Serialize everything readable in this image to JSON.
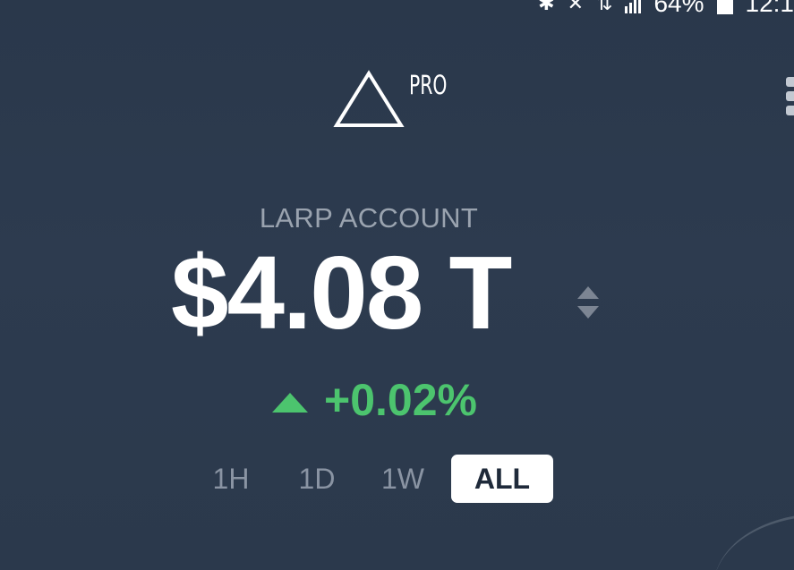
{
  "status_bar": {
    "battery": "64%",
    "time": "12:1"
  },
  "header": {
    "badge": "PRO"
  },
  "account": {
    "label": "LARP ACCOUNT",
    "balance": "$4.08 T"
  },
  "change": {
    "value": "+0.02%",
    "direction": "up",
    "color": "#4cc46e"
  },
  "ranges": [
    "1H",
    "1D",
    "1W",
    "ALL"
  ],
  "selected_range": "ALL",
  "icons": {
    "logo": "triangle-logo-icon",
    "toggle": "sort-toggle-icon",
    "change": "caret-up-icon",
    "menu": "more-vertical-icon"
  },
  "colors": {
    "background": "#2c3a4e",
    "accent_green": "#4cc46e",
    "muted_text": "#9aa3af"
  }
}
